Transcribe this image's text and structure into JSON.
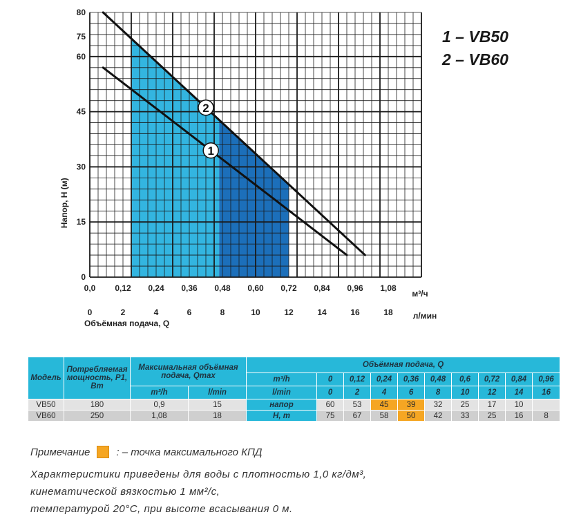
{
  "legend": {
    "line1": "1 – VB50",
    "line2": "2 – VB60"
  },
  "chart_data": {
    "type": "line",
    "ylabel": "Напор, Н (м)",
    "xlabel": "Объёмная подача, Q",
    "x_unit_top": "м³/ч",
    "x_unit_bottom": "л/мин",
    "y_ticks": [
      "0",
      "15",
      "30",
      "45",
      "60",
      "75",
      "80"
    ],
    "x_ticks_top": [
      "0,0",
      "0,12",
      "0,24",
      "0,36",
      "0,48",
      "0,60",
      "0,72",
      "0,84",
      "0,96",
      "1,08"
    ],
    "x_ticks_bottom": [
      "0",
      "2",
      "4",
      "6",
      "8",
      "10",
      "12",
      "14",
      "16",
      "18"
    ],
    "xlim_lmin": [
      0,
      20
    ],
    "series": [
      {
        "name": "1",
        "color": "#111111",
        "x": [
          0.8,
          15.5
        ],
        "y": [
          57,
          6
        ]
      },
      {
        "name": "2",
        "color": "#111111",
        "x": [
          0.8,
          16.6
        ],
        "y": [
          72,
          6
        ]
      }
    ],
    "fill_regions": [
      {
        "x": [
          2.5,
          7.8
        ],
        "color": "#33b5e0"
      },
      {
        "x": [
          7.8,
          12.0
        ],
        "color": "#1c6fba"
      }
    ]
  },
  "table": {
    "h_model": "Модель",
    "h_power": "Потребляемая мощность, P1, Вт",
    "h_qmax": "Максимальная объёмная подача, Qmax",
    "h_qmax_m3": "m³/h",
    "h_qmax_lmin": "l/min",
    "h_flow": "Объёмная подача, Q",
    "h_m3h": "m³/h",
    "h_lmin": "l/min",
    "flow_m3h": [
      "0",
      "0,12",
      "0,24",
      "0,36",
      "0,48",
      "0,6",
      "0,72",
      "0,84",
      "0,96"
    ],
    "flow_lmin": [
      "0",
      "2",
      "4",
      "6",
      "8",
      "10",
      "12",
      "14",
      "16"
    ],
    "lab1": "напор",
    "lab2": "H, m",
    "vb50": {
      "model": "VB50",
      "power": "180",
      "qm3": "0,9",
      "ql": "15",
      "heads": [
        "60",
        "53",
        "45",
        "39",
        "32",
        "25",
        "17",
        "10",
        ""
      ]
    },
    "vb60": {
      "model": "VB60",
      "power": "250",
      "qm3": "1,08",
      "ql": "18",
      "heads": [
        "75",
        "67",
        "58",
        "50",
        "42",
        "33",
        "25",
        "16",
        "8"
      ]
    },
    "highlight_color": "#f5a623"
  },
  "note": {
    "label": "Примечание",
    "text": ": – точка максимального КПД"
  },
  "conditions": {
    "line1": "Характеристики приведены для воды с плотностью 1,0 кг/дм³,",
    "line2": "кинематической вязкостью 1 мм²/с,",
    "line3": "температурой 20°С, при высоте всасывания 0 м."
  }
}
